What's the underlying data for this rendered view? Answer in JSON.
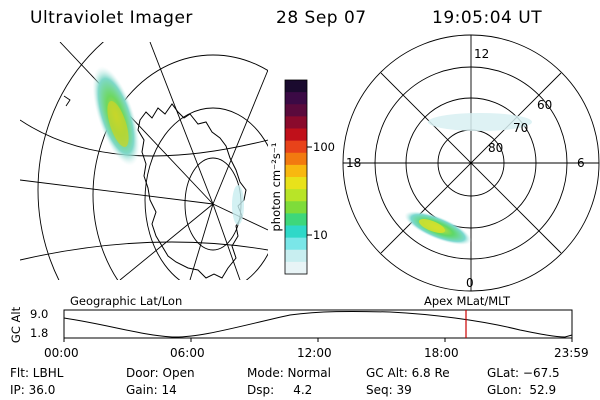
{
  "header": {
    "instrument": "Ultraviolet Imager",
    "date": "28 Sep 07",
    "time": "19:05:04 UT"
  },
  "left_map": {
    "label": "Geographic Lat/Lon"
  },
  "right_map": {
    "label": "Apex MLat/MLT",
    "mlt_labels": [
      "12",
      "18",
      "6",
      "0"
    ],
    "lat_labels": [
      "60",
      "70",
      "80"
    ]
  },
  "colorbar": {
    "unit_label": "photon cm⁻²s⁻¹",
    "ticks": [
      "100",
      "10"
    ],
    "colors": [
      "#1a0a2e",
      "#3b0a45",
      "#5a0a3c",
      "#8a0a2c",
      "#c0101a",
      "#e8431a",
      "#f27a10",
      "#f8b810",
      "#e8e21a",
      "#b8e428",
      "#7edc3a",
      "#3ed77a",
      "#2fd8c8",
      "#7ae6e8",
      "#c8eef0",
      "#e8f4f6"
    ]
  },
  "altitude_plot": {
    "ylabel": "GC Alt",
    "yticks": [
      "9.0",
      "1.8"
    ],
    "xticks": [
      "00:00",
      "06:00",
      "12:00",
      "18:00",
      "23:59"
    ],
    "current_time_marker": "19:05:04",
    "marker_color": "#cc0000"
  },
  "info": {
    "filter": "Flt: LBHL",
    "ip": "IP: 36.0",
    "door": "Door: Open",
    "gain": "Gain: 14",
    "mode": "Mode: Normal",
    "dsp": "Dsp:     4.2",
    "gc_alt": "GC Alt: 6.8 Re",
    "seq": "Seq: 39",
    "glat": "GLat: −67.5",
    "glon": "GLon:  52.9"
  }
}
